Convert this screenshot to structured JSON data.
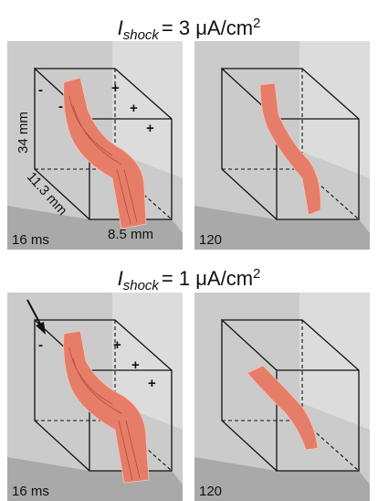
{
  "rows": [
    {
      "title": {
        "symbol": "I",
        "subscript": "shock",
        "text": "= 3 μA/cm",
        "superscript": "2"
      },
      "panels": [
        {
          "time": "16 ms",
          "dims": {
            "height": "34 mm",
            "depth": "11.3 mm",
            "width": "8.5 mm"
          },
          "signs": [
            "-",
            "-",
            "+",
            "+",
            "+"
          ]
        },
        {
          "time": "120"
        }
      ]
    },
    {
      "title": {
        "symbol": "I",
        "subscript": "shock",
        "text": "= 1 μA/cm",
        "superscript": "2"
      },
      "panels": [
        {
          "time": "16 ms",
          "signs": [
            "-",
            "+",
            "+",
            "+"
          ]
        },
        {
          "time": "120"
        }
      ]
    }
  ]
}
